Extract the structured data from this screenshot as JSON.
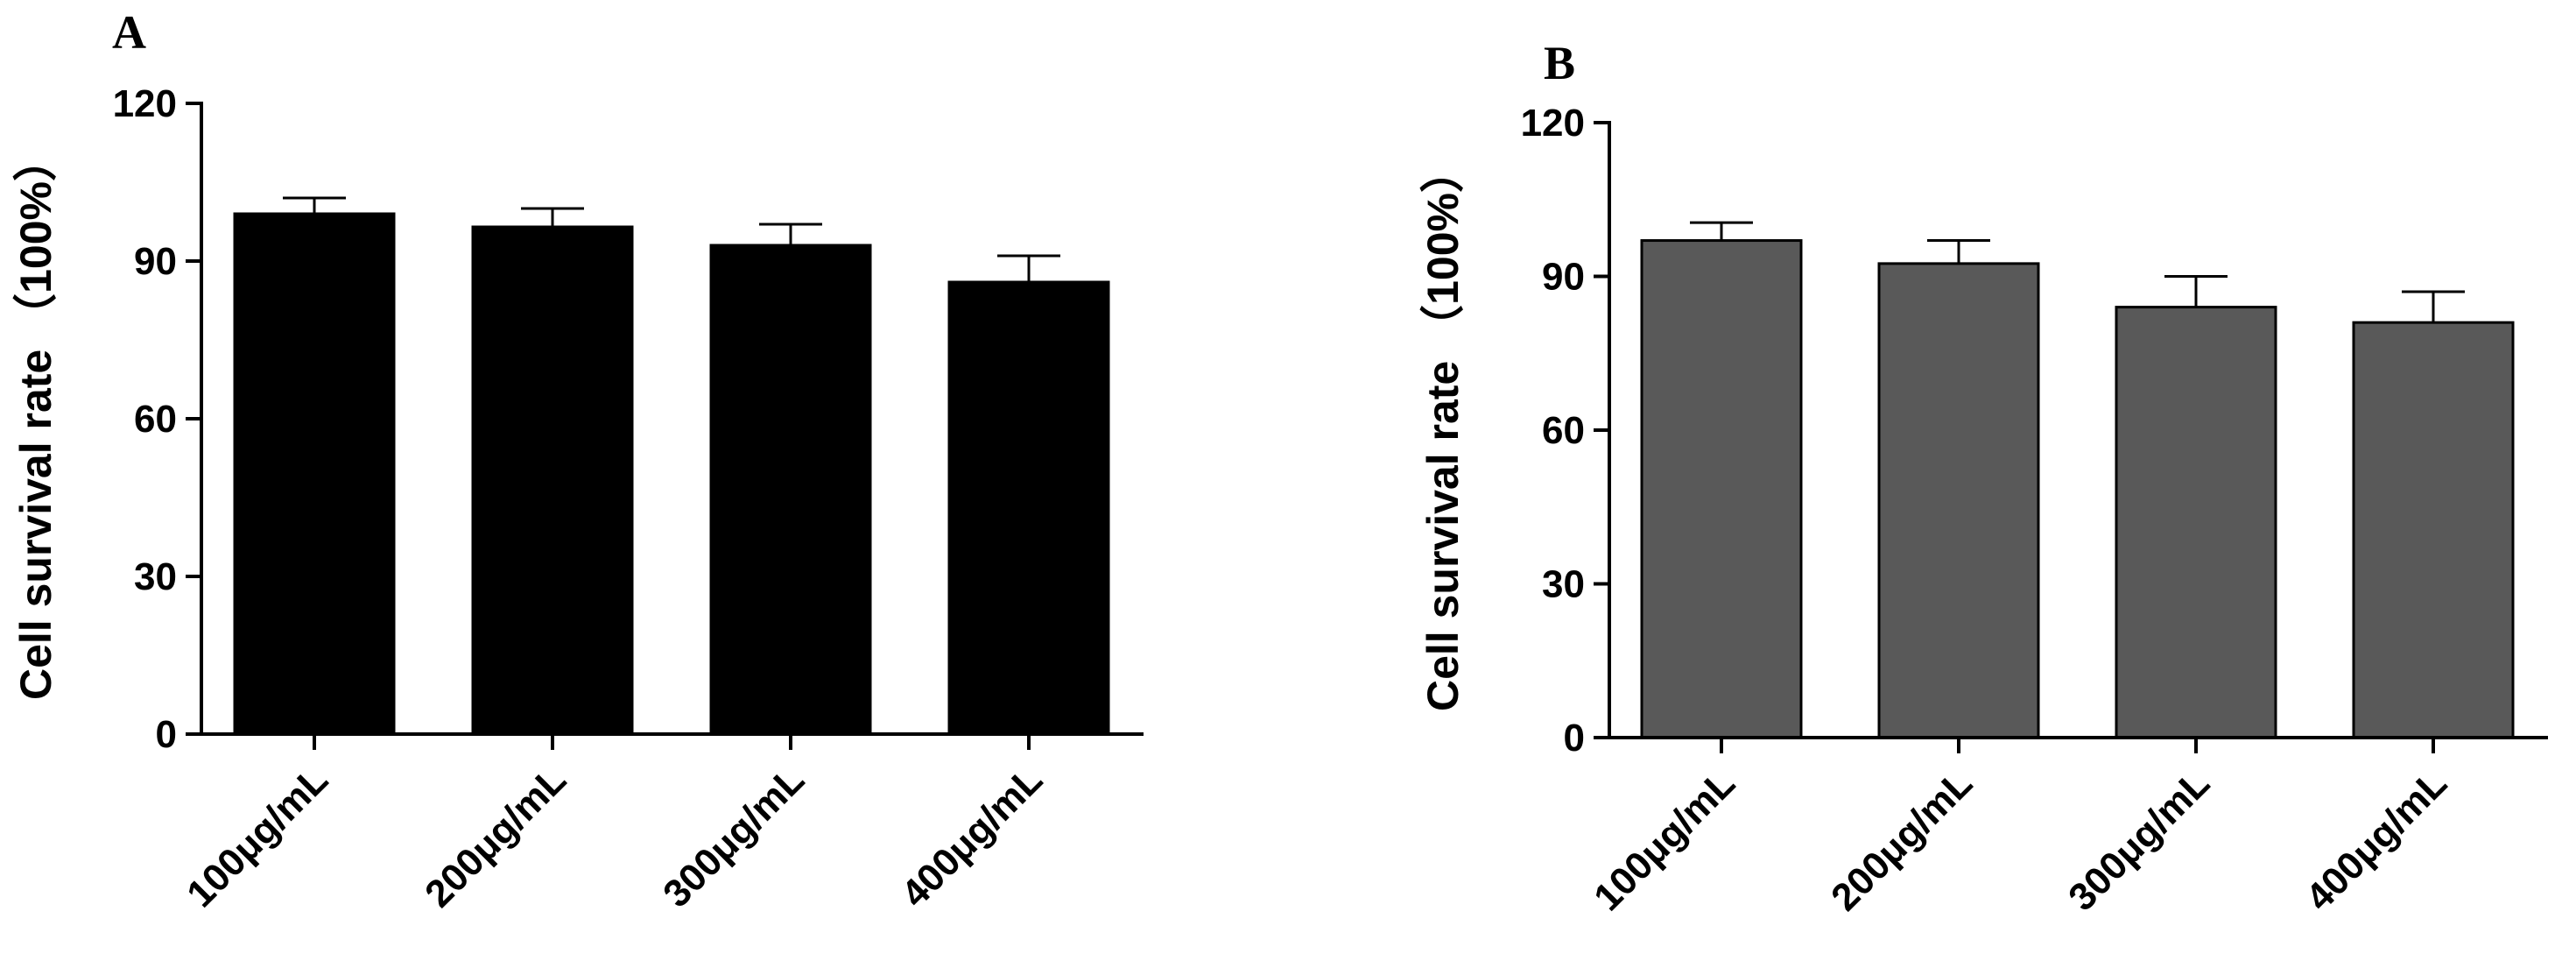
{
  "chart_data": [
    {
      "panel": "A",
      "type": "bar",
      "categories": [
        "100μg/mL",
        "200μg/mL",
        "300μg/mL",
        "400μg/mL"
      ],
      "values": [
        99,
        96.5,
        93,
        86
      ],
      "errors": [
        3,
        3.5,
        4,
        5
      ],
      "ylabel": "Cell survival rate （100%）",
      "ylim": [
        0,
        120
      ],
      "yticks": [
        0,
        30,
        60,
        90,
        120
      ],
      "bar_color": "#000000",
      "grid": false
    },
    {
      "panel": "B",
      "type": "bar",
      "categories": [
        "100μg/mL",
        "200μg/mL",
        "300μg/mL",
        "400μg/mL"
      ],
      "values": [
        97,
        92.5,
        84,
        81
      ],
      "errors": [
        3.5,
        4.5,
        6,
        6
      ],
      "ylabel": "Cell survival rate （100%）",
      "ylim": [
        0,
        120
      ],
      "yticks": [
        0,
        30,
        60,
        90,
        120
      ],
      "bar_color": "#595959",
      "grid": false
    }
  ]
}
